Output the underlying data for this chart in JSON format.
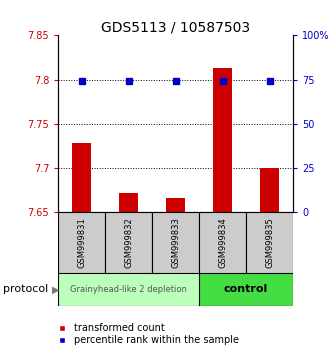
{
  "title": "GDS5113 / 10587503",
  "samples": [
    "GSM999831",
    "GSM999832",
    "GSM999833",
    "GSM999834",
    "GSM999835"
  ],
  "red_values": [
    7.728,
    7.672,
    7.666,
    7.813,
    7.7
  ],
  "blue_values": [
    74,
    74,
    74,
    74,
    74
  ],
  "ylim_left": [
    7.65,
    7.85
  ],
  "ylim_right": [
    0,
    100
  ],
  "yticks_left": [
    7.65,
    7.7,
    7.75,
    7.8,
    7.85
  ],
  "yticks_right": [
    0,
    25,
    50,
    75,
    100
  ],
  "ytick_labels_left": [
    "7.65",
    "7.7",
    "7.75",
    "7.8",
    "7.85"
  ],
  "ytick_labels_right": [
    "0",
    "25",
    "50",
    "75",
    "100%"
  ],
  "grid_lines": [
    7.7,
    7.75,
    7.8
  ],
  "bar_bottom": 7.65,
  "bar_color": "#cc0000",
  "square_color": "#0000cc",
  "group1_samples": [
    0,
    1,
    2
  ],
  "group2_samples": [
    3,
    4
  ],
  "group1_label": "Grainyhead-like 2 depletion",
  "group2_label": "control",
  "group1_color": "#bbffbb",
  "group2_color": "#44dd44",
  "protocol_label": "protocol",
  "legend_red": "transformed count",
  "legend_blue": "percentile rank within the sample",
  "title_fontsize": 10,
  "tick_fontsize": 7,
  "sample_fontsize": 6,
  "legend_fontsize": 7,
  "group_label_fontsize1": 6,
  "group_label_fontsize2": 8
}
